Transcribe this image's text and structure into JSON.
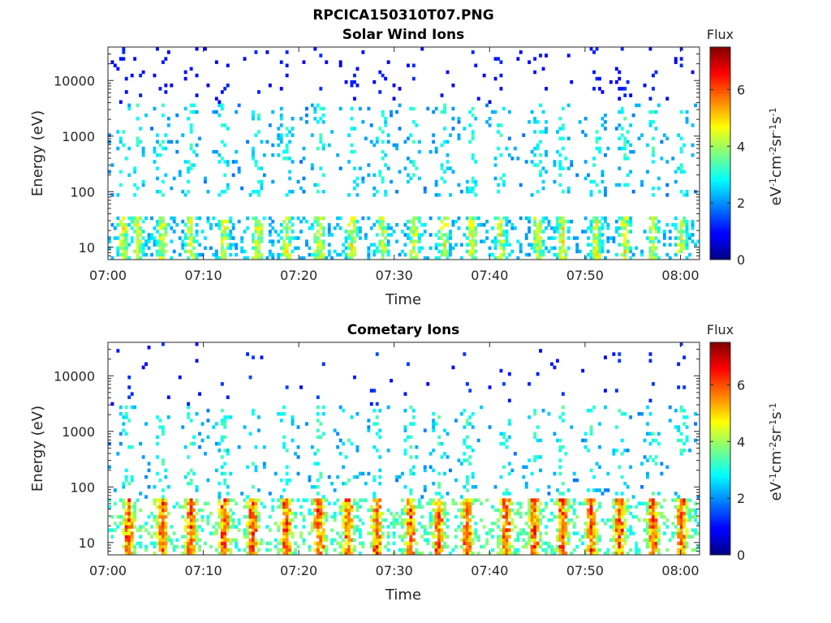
{
  "figure_title": "RPCICA150310T07.PNG",
  "chart_data": [
    {
      "type": "heatmap",
      "title": "Solar Wind Ions",
      "xlabel": "Time",
      "ylabel": "Energy (eV)",
      "y_scale": "log",
      "ylim": [
        6,
        40000
      ],
      "x_range": [
        "07:00",
        "08:02"
      ],
      "x_ticks": [
        "07:00",
        "07:10",
        "07:20",
        "07:30",
        "07:40",
        "07:50",
        "08:00"
      ],
      "y_ticks": [
        "10",
        "100",
        "1000",
        "10000"
      ],
      "colorbar": {
        "title": "Flux",
        "label": "eV-1cm-2sr-1s-1",
        "range": [
          0,
          7.5
        ],
        "ticks": [
          "0",
          "2",
          "4",
          "6"
        ],
        "colormap": "jet"
      },
      "data_description_seed": 11,
      "bands": [
        {
          "emin": 6,
          "emax": 35,
          "density": 0.55,
          "flux": 3.2
        },
        {
          "emin": 80,
          "emax": 4000,
          "density": 0.14,
          "flux": 2.8
        },
        {
          "emin": 4000,
          "emax": 40000,
          "density": 0.05,
          "flux": 1.0
        }
      ],
      "bursts_min": [
        1.5,
        3.0,
        5.5,
        8.5,
        12.0,
        15.5,
        18.5,
        22.0,
        25.5,
        28.5,
        32.0,
        35.0,
        38.0,
        41.0,
        45.0,
        47.5,
        51.0,
        54.0,
        57.0,
        60.0
      ]
    },
    {
      "type": "heatmap",
      "title": "Cometary Ions",
      "xlabel": "Time",
      "ylabel": "Energy (eV)",
      "y_scale": "log",
      "ylim": [
        6,
        40000
      ],
      "x_range": [
        "07:00",
        "08:02"
      ],
      "x_ticks": [
        "07:00",
        "07:10",
        "07:20",
        "07:30",
        "07:40",
        "07:50",
        "08:00"
      ],
      "y_ticks": [
        "10",
        "100",
        "1000",
        "10000"
      ],
      "colorbar": {
        "title": "Flux",
        "label": "eV-1cm-2sr-1s-1",
        "range": [
          0,
          7.5
        ],
        "ticks": [
          "0",
          "2",
          "4",
          "6"
        ],
        "colormap": "jet"
      },
      "data_description_seed": 29,
      "bands": [
        {
          "emin": 6,
          "emax": 60,
          "density": 0.65,
          "flux": 4.6
        },
        {
          "emin": 60,
          "emax": 3000,
          "density": 0.12,
          "flux": 2.9
        },
        {
          "emin": 3000,
          "emax": 40000,
          "density": 0.02,
          "flux": 1.2
        }
      ],
      "bursts_min": [
        2.0,
        5.5,
        8.5,
        12.0,
        15.0,
        18.5,
        22.0,
        25.0,
        28.0,
        31.5,
        34.5,
        37.5,
        41.5,
        44.5,
        47.5,
        50.5,
        53.5,
        57.0,
        60.0
      ]
    }
  ]
}
